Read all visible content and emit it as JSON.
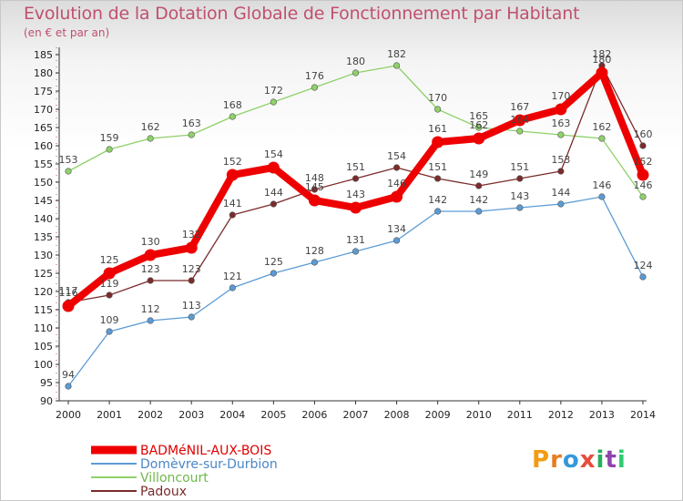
{
  "title": "Evolution de la Dotation Globale de Fonctionnement par Habitant",
  "subtitle": "(en € et par an)",
  "logo": {
    "letters": [
      "P",
      "r",
      "o",
      "x",
      "i",
      "t",
      "i"
    ],
    "colors": [
      "#f39c12",
      "#e67e22",
      "#3498db",
      "#e74c3c",
      "#27ae60",
      "#8e44ad",
      "#2ecc71"
    ]
  },
  "chart_data": {
    "type": "line",
    "title": "Evolution de la Dotation Globale de Fonctionnement par Habitant",
    "subtitle": "(en € et par an)",
    "x": [
      "2000",
      "2001",
      "2002",
      "2003",
      "2004",
      "2005",
      "2006",
      "2007",
      "2008",
      "2009",
      "2010",
      "2011",
      "2012",
      "2013",
      "2014"
    ],
    "ylim": [
      90,
      185
    ],
    "yticks": [
      90,
      95,
      100,
      105,
      110,
      115,
      120,
      125,
      130,
      135,
      140,
      145,
      150,
      155,
      160,
      165,
      170,
      175,
      180,
      185
    ],
    "grid": false,
    "legend_position": "bottom-left",
    "series": [
      {
        "name": "Domèvre-sur-Durbion",
        "color": "#5b9bd5",
        "values": [
          94,
          109,
          112,
          113,
          121,
          125,
          128,
          131,
          134,
          142,
          142,
          143,
          144,
          146,
          124
        ]
      },
      {
        "name": "Villoncourt",
        "color": "#8fd16a",
        "values": [
          153,
          159,
          162,
          163,
          168,
          172,
          176,
          180,
          182,
          170,
          165,
          164,
          163,
          162,
          146
        ]
      },
      {
        "name": "Padoux",
        "color": "#7b2b2b",
        "values": [
          117,
          119,
          123,
          123,
          141,
          144,
          148,
          151,
          154,
          151,
          149,
          151,
          153,
          182,
          160
        ]
      },
      {
        "name": "BADMéNIL-AUX-BOIS",
        "color": "#ee0000",
        "values": [
          116,
          125,
          130,
          132,
          152,
          154,
          145,
          143,
          146,
          161,
          162,
          167,
          170,
          180,
          152
        ]
      }
    ],
    "legend_order": [
      "BADMéNIL-AUX-BOIS",
      "Domèvre-sur-Durbion",
      "Villoncourt",
      "Padoux"
    ]
  }
}
